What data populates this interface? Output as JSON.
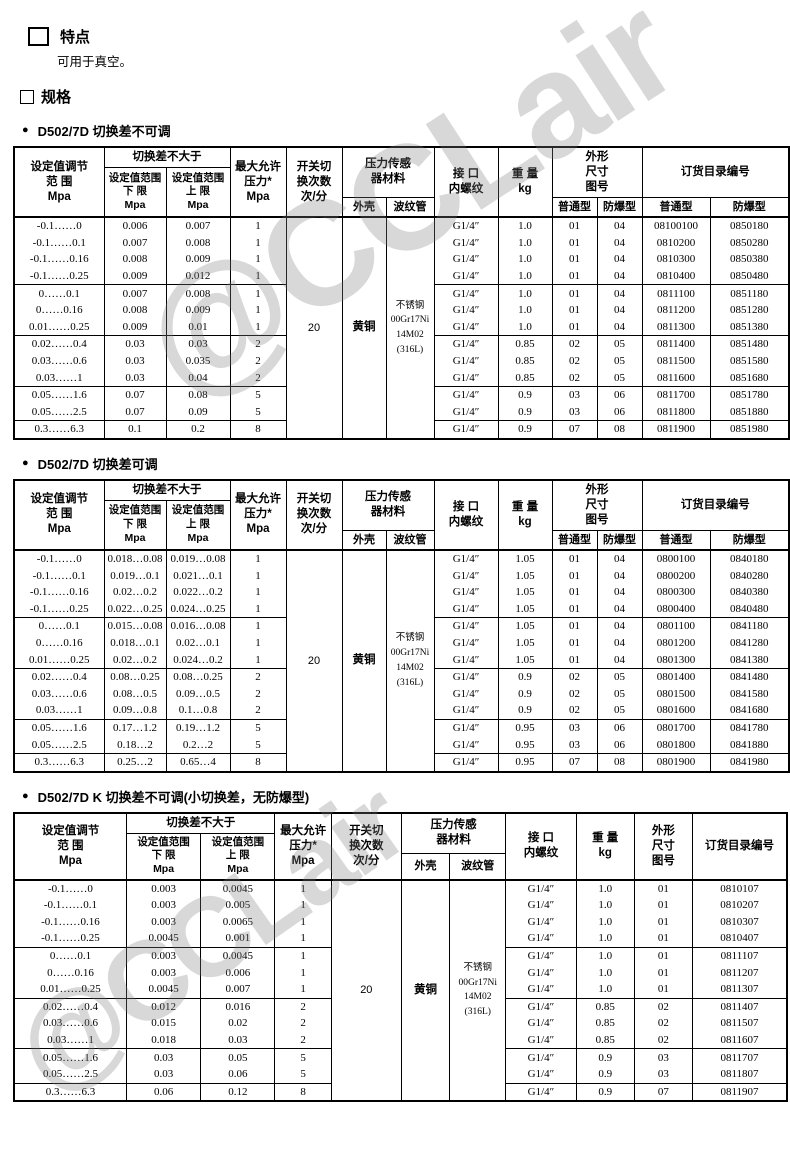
{
  "page": {
    "feature_heading": "特点",
    "feature_text": "可用于真空。",
    "spec_heading": "规格",
    "bullet": "●",
    "watermark_text": "@CCLair"
  },
  "tables": [
    {
      "title": "D502/7D 切换差不可调",
      "header": [
        [
          {
            "t": "设定值调节\n范  围\nMpa",
            "rs": 3,
            "n": "col-set-range"
          },
          {
            "t": "切换差不大于",
            "cs": 2,
            "n": "col-switch-diff"
          },
          {
            "t": "最大允许\n压力*\nMpa",
            "rs": 3,
            "n": "col-max-pressure"
          },
          {
            "t": "开关切\n换次数\n次/分",
            "rs": 3,
            "n": "col-switch-rate"
          },
          {
            "t": "压力传感\n器材料",
            "cs": 2,
            "rs": 2,
            "n": "col-sensor-material"
          },
          {
            "t": "接  口\n内螺纹",
            "rs": 3,
            "n": "col-interface-thread"
          },
          {
            "t": "重  量\nkg",
            "rs": 3,
            "n": "col-weight"
          },
          {
            "t": "外形\n尺寸\n图号",
            "cs": 2,
            "rs": 2,
            "n": "col-dimension-fig"
          },
          {
            "t": "订货目录编号",
            "cs": 2,
            "rs": 2,
            "n": "col-order-catalog"
          }
        ],
        [
          {
            "t": "设定值范围\n下  限\nMpa",
            "rs": 2,
            "n": "col-lower-limit"
          },
          {
            "t": "设定值范围\n上  限\nMpa",
            "rs": 2,
            "n": "col-upper-limit"
          }
        ],
        [
          {
            "t": "外壳",
            "n": "col-shell"
          },
          {
            "t": "波纹管",
            "n": "col-bellows"
          },
          {
            "t": "普通型",
            "n": "col-fig-normal"
          },
          {
            "t": "防爆型",
            "n": "col-fig-explosionproof"
          },
          {
            "t": "普通型",
            "n": "col-cat-normal"
          },
          {
            "t": "防爆型",
            "n": "col-cat-explosionproof"
          }
        ]
      ],
      "merged": [
        {
          "index": 4,
          "text": "20",
          "n": "switch-rate-value",
          "cn": false
        },
        {
          "index": 5,
          "text": "黄铜",
          "n": "shell-material-value",
          "cn": true
        },
        {
          "index": 6,
          "text": "不锈钢\n00Gr17Ni\n14M02\n(316L)",
          "n": "bellows-material-value",
          "small": true
        }
      ],
      "group_breaks": [
        3,
        6,
        9,
        11
      ],
      "rows": [
        [
          "-0.1……0",
          "0.006",
          "0.007",
          "1",
          "G1/4″",
          "1.0",
          "01",
          "04",
          "08100100",
          "0850180"
        ],
        [
          "-0.1……0.1",
          "0.007",
          "0.008",
          "1",
          "G1/4″",
          "1.0",
          "01",
          "04",
          "0810200",
          "0850280"
        ],
        [
          "-0.1……0.16",
          "0.008",
          "0.009",
          "1",
          "G1/4″",
          "1.0",
          "01",
          "04",
          "0810300",
          "0850380"
        ],
        [
          "-0.1……0.25",
          "0.009",
          "0.012",
          "1",
          "G1/4″",
          "1.0",
          "01",
          "04",
          "0810400",
          "0850480"
        ],
        [
          "0……0.1",
          "0.007",
          "0.008",
          "1",
          "G1/4″",
          "1.0",
          "01",
          "04",
          "0811100",
          "0851180"
        ],
        [
          "0……0.16",
          "0.008",
          "0.009",
          "1",
          "G1/4″",
          "1.0",
          "01",
          "04",
          "0811200",
          "0851280"
        ],
        [
          "0.01……0.25",
          "0.009",
          "0.01",
          "1",
          "G1/4″",
          "1.0",
          "01",
          "04",
          "0811300",
          "0851380"
        ],
        [
          "0.02……0.4",
          "0.03",
          "0.03",
          "2",
          "G1/4″",
          "0.85",
          "02",
          "05",
          "0811400",
          "0851480"
        ],
        [
          "0.03……0.6",
          "0.03",
          "0.035",
          "2",
          "G1/4″",
          "0.85",
          "02",
          "05",
          "0811500",
          "0851580"
        ],
        [
          "0.03……1",
          "0.03",
          "0.04",
          "2",
          "G1/4″",
          "0.85",
          "02",
          "05",
          "0811600",
          "0851680"
        ],
        [
          "0.05……1.6",
          "0.07",
          "0.08",
          "5",
          "G1/4″",
          "0.9",
          "03",
          "06",
          "0811700",
          "0851780"
        ],
        [
          "0.05……2.5",
          "0.07",
          "0.09",
          "5",
          "G1/4″",
          "0.9",
          "03",
          "06",
          "0811800",
          "0851880"
        ],
        [
          "0.3……6.3",
          "0.1",
          "0.2",
          "8",
          "G1/4″",
          "0.9",
          "07",
          "08",
          "0811900",
          "0851980"
        ]
      ]
    },
    {
      "title": "D502/7D 切换差可调",
      "header": [
        [
          {
            "t": "设定值调节\n范  围\nMpa",
            "rs": 3,
            "n": "col-set-range"
          },
          {
            "t": "切换差不大于",
            "cs": 2,
            "n": "col-switch-diff"
          },
          {
            "t": "最大允许\n压力*\nMpa",
            "rs": 3,
            "n": "col-max-pressure"
          },
          {
            "t": "开关切\n换次数\n次/分",
            "rs": 3,
            "n": "col-switch-rate"
          },
          {
            "t": "压力传感\n器材料",
            "cs": 2,
            "rs": 2,
            "n": "col-sensor-material"
          },
          {
            "t": "接  口\n内螺纹",
            "rs": 3,
            "n": "col-interface-thread"
          },
          {
            "t": "重  量\nkg",
            "rs": 3,
            "n": "col-weight"
          },
          {
            "t": "外形\n尺寸\n图号",
            "cs": 2,
            "rs": 2,
            "n": "col-dimension-fig"
          },
          {
            "t": "订货目录编号",
            "cs": 2,
            "rs": 2,
            "n": "col-order-catalog"
          }
        ],
        [
          {
            "t": "设定值范围\n下  限\nMpa",
            "rs": 2,
            "n": "col-lower-limit"
          },
          {
            "t": "设定值范围\n上  限\nMpa",
            "rs": 2,
            "n": "col-upper-limit"
          }
        ],
        [
          {
            "t": "外壳",
            "n": "col-shell"
          },
          {
            "t": "波纹管",
            "n": "col-bellows"
          },
          {
            "t": "普通型",
            "n": "col-fig-normal"
          },
          {
            "t": "防爆型",
            "n": "col-fig-explosionproof"
          },
          {
            "t": "普通型",
            "n": "col-cat-normal"
          },
          {
            "t": "防爆型",
            "n": "col-cat-explosionproof"
          }
        ]
      ],
      "merged": [
        {
          "index": 4,
          "text": "20",
          "n": "switch-rate-value",
          "cn": false
        },
        {
          "index": 5,
          "text": "黄铜",
          "n": "shell-material-value",
          "cn": true
        },
        {
          "index": 6,
          "text": "不锈钢\n00Gr17Ni\n14M02\n(316L)",
          "n": "bellows-material-value",
          "small": true
        }
      ],
      "group_breaks": [
        3,
        6,
        9,
        11
      ],
      "rows": [
        [
          "-0.1……0",
          "0.018…0.08",
          "0.019…0.08",
          "1",
          "G1/4″",
          "1.05",
          "01",
          "04",
          "0800100",
          "0840180"
        ],
        [
          "-0.1……0.1",
          "0.019…0.1",
          "0.021…0.1",
          "1",
          "G1/4″",
          "1.05",
          "01",
          "04",
          "0800200",
          "0840280"
        ],
        [
          "-0.1……0.16",
          "0.02…0.2",
          "0.022…0.2",
          "1",
          "G1/4″",
          "1.05",
          "01",
          "04",
          "0800300",
          "0840380"
        ],
        [
          "-0.1……0.25",
          "0.022…0.25",
          "0.024…0.25",
          "1",
          "G1/4″",
          "1.05",
          "01",
          "04",
          "0800400",
          "0840480"
        ],
        [
          "0……0.1",
          "0.015…0.08",
          "0.016…0.08",
          "1",
          "G1/4″",
          "1.05",
          "01",
          "04",
          "0801100",
          "0841180"
        ],
        [
          "0……0.16",
          "0.018…0.1",
          "0.02…0.1",
          "1",
          "G1/4″",
          "1.05",
          "01",
          "04",
          "0801200",
          "0841280"
        ],
        [
          "0.01……0.25",
          "0.02…0.2",
          "0.024…0.2",
          "1",
          "G1/4″",
          "1.05",
          "01",
          "04",
          "0801300",
          "0841380"
        ],
        [
          "0.02……0.4",
          "0.08…0.25",
          "0.08…0.25",
          "2",
          "G1/4″",
          "0.9",
          "02",
          "05",
          "0801400",
          "0841480"
        ],
        [
          "0.03……0.6",
          "0.08…0.5",
          "0.09…0.5",
          "2",
          "G1/4″",
          "0.9",
          "02",
          "05",
          "0801500",
          "0841580"
        ],
        [
          "0.03……1",
          "0.09…0.8",
          "0.1…0.8",
          "2",
          "G1/4″",
          "0.9",
          "02",
          "05",
          "0801600",
          "0841680"
        ],
        [
          "0.05……1.6",
          "0.17…1.2",
          "0.19…1.2",
          "5",
          "G1/4″",
          "0.95",
          "03",
          "06",
          "0801700",
          "0841780"
        ],
        [
          "0.05……2.5",
          "0.18…2",
          "0.2…2",
          "5",
          "G1/4″",
          "0.95",
          "03",
          "06",
          "0801800",
          "0841880"
        ],
        [
          "0.3……6.3",
          "0.25…2",
          "0.65…4",
          "8",
          "G1/4″",
          "0.95",
          "07",
          "08",
          "0801900",
          "0841980"
        ]
      ]
    },
    {
      "title": "D502/7D K 切换差不可调(小切换差，无防爆型)",
      "header": [
        [
          {
            "t": "设定值调节\n范  围\nMpa",
            "rs": 3,
            "n": "col-set-range"
          },
          {
            "t": "切换差不大于",
            "cs": 2,
            "n": "col-switch-diff"
          },
          {
            "t": "最大允许\n压力*\nMpa",
            "rs": 3,
            "n": "col-max-pressure"
          },
          {
            "t": "开关切\n换次数\n次/分",
            "rs": 3,
            "n": "col-switch-rate"
          },
          {
            "t": "压力传感\n器材料",
            "cs": 2,
            "rs": 2,
            "n": "col-sensor-material"
          },
          {
            "t": "接  口\n内螺纹",
            "rs": 3,
            "n": "col-interface-thread"
          },
          {
            "t": "重  量\nkg",
            "rs": 3,
            "n": "col-weight"
          },
          {
            "t": "外形\n尺寸\n图号",
            "rs": 3,
            "n": "col-dimension-fig"
          },
          {
            "t": "订货目录编号",
            "rs": 3,
            "n": "col-order-catalog"
          }
        ],
        [
          {
            "t": "设定值范围\n下  限\nMpa",
            "rs": 2,
            "n": "col-lower-limit"
          },
          {
            "t": "设定值范围\n上  限\nMpa",
            "rs": 2,
            "n": "col-upper-limit"
          }
        ],
        [
          {
            "t": "外壳",
            "n": "col-shell"
          },
          {
            "t": "波纹管",
            "n": "col-bellows"
          }
        ]
      ],
      "merged": [
        {
          "index": 4,
          "text": "20",
          "n": "switch-rate-value",
          "cn": false
        },
        {
          "index": 5,
          "text": "黄铜",
          "n": "shell-material-value",
          "cn": true
        },
        {
          "index": 6,
          "text": "不锈钢\n00Gr17Ni\n14M02\n(316L)",
          "n": "bellows-material-value",
          "small": true
        }
      ],
      "group_breaks": [
        3,
        6,
        9,
        11
      ],
      "rows": [
        [
          "-0.1……0",
          "0.003",
          "0.0045",
          "1",
          "G1/4″",
          "1.0",
          "01",
          "0810107"
        ],
        [
          "-0.1……0.1",
          "0.003",
          "0.005",
          "1",
          "G1/4″",
          "1.0",
          "01",
          "0810207"
        ],
        [
          "-0.1……0.16",
          "0.003",
          "0.0065",
          "1",
          "G1/4″",
          "1.0",
          "01",
          "0810307"
        ],
        [
          "-0.1……0.25",
          "0.0045",
          "0.001",
          "1",
          "G1/4″",
          "1.0",
          "01",
          "0810407"
        ],
        [
          "0……0.1",
          "0.003",
          "0.0045",
          "1",
          "G1/4″",
          "1.0",
          "01",
          "0811107"
        ],
        [
          "0……0.16",
          "0.003",
          "0.006",
          "1",
          "G1/4″",
          "1.0",
          "01",
          "0811207"
        ],
        [
          "0.01……0.25",
          "0.0045",
          "0.007",
          "1",
          "G1/4″",
          "1.0",
          "01",
          "0811307"
        ],
        [
          "0.02……0.4",
          "0.012",
          "0.016",
          "2",
          "G1/4″",
          "0.85",
          "02",
          "0811407"
        ],
        [
          "0.03……0.6",
          "0.015",
          "0.02",
          "2",
          "G1/4″",
          "0.85",
          "02",
          "0811507"
        ],
        [
          "0.03……1",
          "0.018",
          "0.03",
          "2",
          "G1/4″",
          "0.85",
          "02",
          "0811607"
        ],
        [
          "0.05……1.6",
          "0.03",
          "0.05",
          "5",
          "G1/4″",
          "0.9",
          "03",
          "0811707"
        ],
        [
          "0.05……2.5",
          "0.03",
          "0.06",
          "5",
          "G1/4″",
          "0.9",
          "03",
          "0811807"
        ],
        [
          "0.3……6.3",
          "0.06",
          "0.12",
          "8",
          "G1/4″",
          "0.9",
          "07",
          "0811907"
        ]
      ]
    }
  ]
}
